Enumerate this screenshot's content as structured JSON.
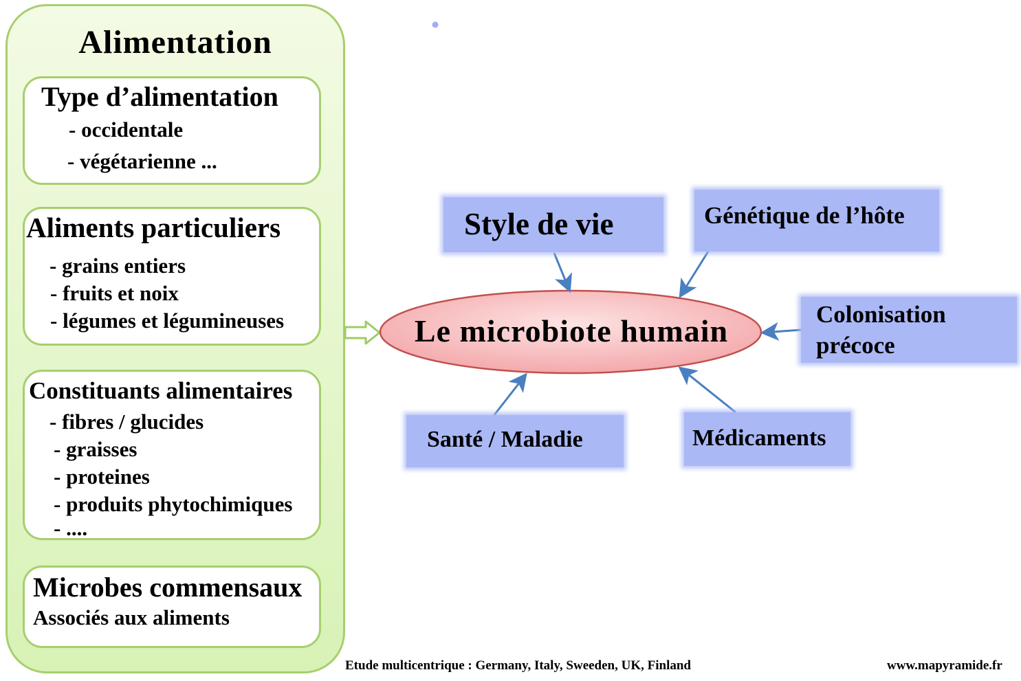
{
  "colors": {
    "panel_border": "#a6cf6e",
    "factor_fill": "#aab8f5",
    "arrow": "#4a7fc0",
    "ellipse_fill": "#f7b9bb",
    "ellipse_border": "#c0504d"
  },
  "left_panel": {
    "title": "Alimentation",
    "boxes": [
      {
        "heading": "Type d’alimentation",
        "items": [
          "- occidentale",
          "- végétarienne ..."
        ]
      },
      {
        "heading": "Aliments particuliers",
        "items": [
          "- grains entiers",
          "- fruits et noix",
          "- légumes et légumineuses"
        ]
      },
      {
        "heading": "Constituants alimentaires",
        "items": [
          "- fibres / glucides",
          "- graisses",
          "- proteines",
          "- produits phytochimiques",
          "- ...."
        ]
      },
      {
        "heading": "Microbes commensaux",
        "items": [
          "Associés aux aliments"
        ]
      }
    ]
  },
  "center": {
    "label": "Le microbiote humain"
  },
  "factors": {
    "style_de_vie": "Style de vie",
    "genetique": "Génétique de l’hôte",
    "colonisation_line1": "Colonisation",
    "colonisation_line2": "précoce",
    "sante": "Santé / Maladie",
    "medicaments": "Médicaments"
  },
  "footer": {
    "study": "Etude multicentrique : Germany, Italy, Sweeden, UK, Finland",
    "website": "www.mapyramide.fr"
  }
}
